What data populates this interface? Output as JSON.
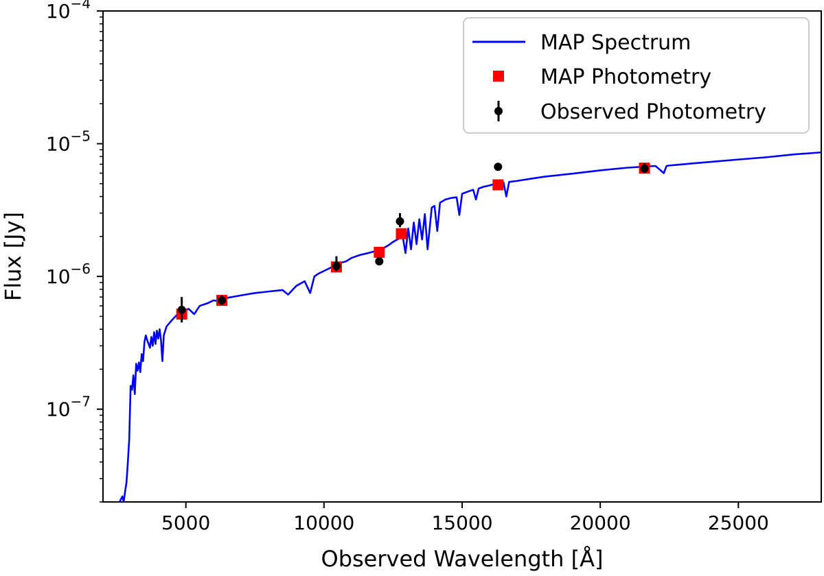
{
  "chart_data": {
    "type": "line",
    "title": "",
    "xlabel": "Observed Wavelength [Å]",
    "ylabel": "Flux [Jy]",
    "x_unit": "Å",
    "y_unit": "Jy",
    "xlim": [
      2000,
      28000
    ],
    "ylim": [
      2e-08,
      0.0001
    ],
    "yscale": "log",
    "grid": false,
    "legend_position": "top-right",
    "x_ticks": [
      5000,
      10000,
      15000,
      20000,
      25000
    ],
    "x_tick_labels": [
      "5000",
      "10000",
      "15000",
      "20000",
      "25000"
    ],
    "y_ticks": [
      {
        "value": 1e-07,
        "base": "10",
        "exp": "−7"
      },
      {
        "value": 1e-06,
        "base": "10",
        "exp": "−6"
      },
      {
        "value": 1e-05,
        "base": "10",
        "exp": "−5"
      },
      {
        "value": 0.0001,
        "base": "10",
        "exp": "−4"
      }
    ],
    "legend": [
      {
        "label": "MAP Spectrum",
        "marker": "line",
        "color": "#0000ff"
      },
      {
        "label": "MAP Photometry",
        "marker": "square",
        "color": "#ff0000"
      },
      {
        "label": "Observed Photometry",
        "marker": "errorbar",
        "color": "#000000"
      }
    ],
    "series": [
      {
        "name": "MAP Spectrum",
        "type": "line",
        "color": "#0000ff",
        "x": [
          2600,
          2700,
          2750,
          2800,
          2850,
          2900,
          2950,
          3000,
          3050,
          3100,
          3150,
          3200,
          3250,
          3300,
          3350,
          3400,
          3450,
          3500,
          3550,
          3600,
          3650,
          3700,
          3750,
          3800,
          3850,
          3900,
          3950,
          4000,
          4050,
          4100,
          4150,
          4200,
          4300,
          4500,
          4700,
          4900,
          5100,
          5300,
          5500,
          5800,
          6000,
          6200,
          6500,
          7000,
          7500,
          8000,
          8500,
          8700,
          9000,
          9300,
          9500,
          9650,
          9800,
          10000,
          10300,
          10500,
          10800,
          11000,
          11300,
          11600,
          12000,
          12300,
          12500,
          12700,
          12850,
          12950,
          13050,
          13150,
          13250,
          13350,
          13450,
          13550,
          13650,
          13750,
          13900,
          14000,
          14100,
          14200,
          14400,
          14600,
          14800,
          14900,
          15000,
          15200,
          15400,
          15500,
          15600,
          15800,
          16000,
          16200,
          16400,
          16500,
          16600,
          16700,
          17000,
          17500,
          18000,
          19000,
          20000,
          21000,
          22000,
          22300,
          22400,
          22500,
          23000,
          24000,
          25000,
          26000,
          27000,
          28000
        ],
        "y": [
          2e-08,
          2.2e-08,
          2e-08,
          2.4e-08,
          2.8e-08,
          4e-08,
          6e-08,
          1.5e-07,
          1.4e-07,
          1.8e-07,
          1.3e-07,
          2.2e-07,
          1.95e-07,
          2.25e-07,
          1.9e-07,
          2.6e-07,
          2.3e-07,
          3.2e-07,
          3.6e-07,
          3.3e-07,
          3.1e-07,
          2.9e-07,
          3.5e-07,
          3e-07,
          3.8e-07,
          3.1e-07,
          3.9e-07,
          3.4e-07,
          4e-07,
          3.3e-07,
          2.3e-07,
          3.6e-07,
          4.2e-07,
          4.7e-07,
          5.2e-07,
          5.5e-07,
          5.7e-07,
          5.2e-07,
          6e-07,
          6.3e-07,
          6.6e-07,
          6.5e-07,
          6.9e-07,
          7.2e-07,
          7.5e-07,
          7.7e-07,
          7.9e-07,
          7.3e-07,
          8.5e-07,
          9.2e-07,
          7.5e-07,
          1e-06,
          1.05e-06,
          1.1e-06,
          1.18e-06,
          1.25e-06,
          1.3e-06,
          1.38e-06,
          1.45e-06,
          1.5e-06,
          1.58e-06,
          1.7e-06,
          1.82e-06,
          1.92e-06,
          2e-06,
          1.5e-06,
          2.3e-06,
          1.6e-06,
          2.55e-06,
          1.75e-06,
          2.7e-06,
          1.9e-06,
          2.95e-06,
          1.6e-06,
          3.3e-06,
          3.4e-06,
          2.2e-06,
          3.6e-06,
          3.8e-06,
          3.9e-06,
          3.95e-06,
          2.9e-06,
          4.2e-06,
          4.35e-06,
          4.5e-06,
          3.8e-06,
          4.6e-06,
          4.75e-06,
          4.85e-06,
          5e-06,
          5.05e-06,
          5.1e-06,
          4e-06,
          5.15e-06,
          5.25e-06,
          5.45e-06,
          5.65e-06,
          5.95e-06,
          6.3e-06,
          6.6e-06,
          6.8e-06,
          6e-06,
          6.8e-06,
          6.85e-06,
          7e-06,
          7.3e-06,
          7.6e-06,
          7.9e-06,
          8.3e-06,
          8.6e-06
        ]
      },
      {
        "name": "MAP Photometry",
        "type": "scatter",
        "marker": "square",
        "color": "#ff0000",
        "x": [
          4850,
          6300,
          10450,
          12000,
          12800,
          16300,
          21600
        ],
        "y": [
          5.2e-07,
          6.6e-07,
          1.18e-06,
          1.52e-06,
          2.1e-06,
          4.9e-06,
          6.55e-06
        ]
      },
      {
        "name": "Observed Photometry",
        "type": "errorbar",
        "marker": "circle",
        "color": "#000000",
        "x": [
          4850,
          6300,
          10450,
          12000,
          12750,
          16300,
          21600
        ],
        "y": [
          5.6e-07,
          6.6e-07,
          1.2e-06,
          1.3e-06,
          2.6e-06,
          6.7e-06,
          6.5e-06
        ],
        "yerr_low": [
          4.5e-07,
          6.1e-07,
          1.1e-06,
          1.3e-06,
          2.35e-06,
          6.5e-06,
          6e-06
        ],
        "yerr_high": [
          7e-07,
          7.2e-07,
          1.42e-06,
          1.3e-06,
          3e-06,
          7.1e-06,
          7.1e-06
        ]
      }
    ]
  }
}
